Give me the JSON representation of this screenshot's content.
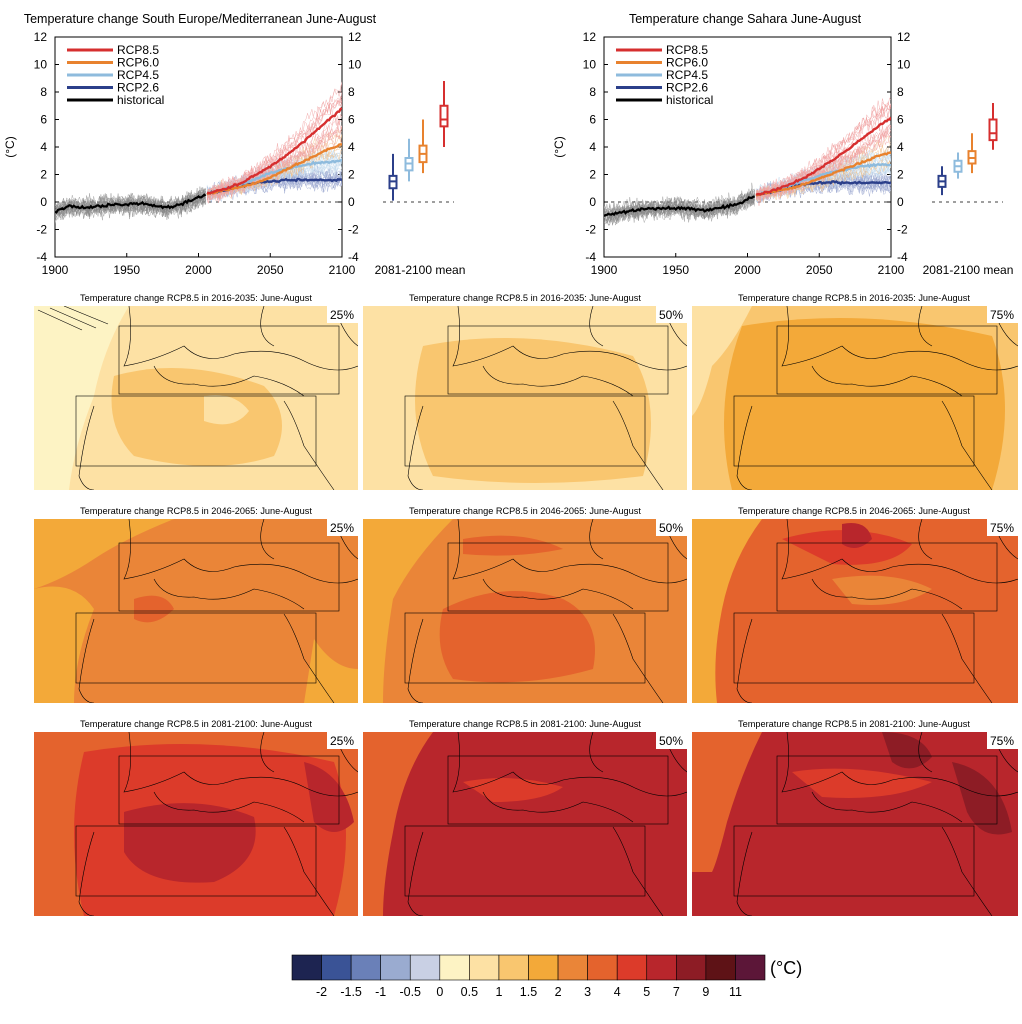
{
  "timeseries_panels": [
    {
      "title": "Temperature change South Europe/Mediterranean June-August",
      "y_unit": "(°C)",
      "boxplot_label": "2081-2100 mean"
    },
    {
      "title": "Temperature change Sahara June-August",
      "y_unit": "(°C)",
      "boxplot_label": "2081-2100 mean"
    }
  ],
  "x_ticks": [
    "1900",
    "1950",
    "2000",
    "2050",
    "2100"
  ],
  "y_ticks": [
    "12",
    "10",
    "8",
    "6",
    "4",
    "2",
    "0",
    "-2",
    "-4"
  ],
  "legend": [
    {
      "label": "RCP8.5",
      "color": "#d62f2f"
    },
    {
      "label": "RCP6.0",
      "color": "#e8822e"
    },
    {
      "label": "RCP4.5",
      "color": "#8ebbdd"
    },
    {
      "label": "RCP2.6",
      "color": "#2b3f8a"
    },
    {
      "label": "historical",
      "color": "#000000"
    }
  ],
  "chart_data": [
    {
      "type": "line",
      "title": "Temperature change South Europe/Mediterranean June-August",
      "ylabel": "(°C)",
      "xlim": [
        1900,
        2100
      ],
      "ylim": [
        -4,
        12
      ],
      "historical": {
        "x": [
          1900,
          1910,
          1920,
          1930,
          1940,
          1950,
          1960,
          1970,
          1980,
          1990,
          2000,
          2005
        ],
        "y": [
          -0.7,
          -0.3,
          -0.4,
          -0.3,
          -0.2,
          -0.2,
          -0.1,
          -0.3,
          -0.4,
          -0.1,
          0.3,
          0.5
        ]
      },
      "series": [
        {
          "name": "RCP8.5",
          "x": [
            2006,
            2020,
            2030,
            2040,
            2050,
            2060,
            2070,
            2080,
            2090,
            2100
          ],
          "y": [
            0.6,
            1.0,
            1.4,
            2.0,
            2.6,
            3.3,
            4.1,
            5.0,
            5.9,
            6.8
          ]
        },
        {
          "name": "RCP6.0",
          "x": [
            2006,
            2020,
            2030,
            2040,
            2050,
            2060,
            2070,
            2080,
            2090,
            2100
          ],
          "y": [
            0.6,
            0.9,
            1.1,
            1.4,
            1.8,
            2.3,
            2.8,
            3.3,
            3.8,
            4.2
          ]
        },
        {
          "name": "RCP4.5",
          "x": [
            2006,
            2020,
            2030,
            2040,
            2050,
            2060,
            2070,
            2080,
            2090,
            2100
          ],
          "y": [
            0.6,
            1.0,
            1.3,
            1.7,
            2.1,
            2.4,
            2.6,
            2.8,
            2.9,
            3.0
          ]
        },
        {
          "name": "RCP2.6",
          "x": [
            2006,
            2020,
            2030,
            2040,
            2050,
            2060,
            2070,
            2080,
            2090,
            2100
          ],
          "y": [
            0.6,
            0.9,
            1.2,
            1.4,
            1.5,
            1.6,
            1.6,
            1.6,
            1.6,
            1.6
          ]
        }
      ],
      "boxplots_2081_2100": [
        {
          "name": "RCP2.6",
          "min": 0.1,
          "q1": 1.0,
          "median": 1.5,
          "q3": 1.9,
          "max": 3.5
        },
        {
          "name": "RCP4.5",
          "min": 1.5,
          "q1": 2.3,
          "median": 2.8,
          "q3": 3.2,
          "max": 4.6
        },
        {
          "name": "RCP6.0",
          "min": 2.1,
          "q1": 2.9,
          "median": 3.5,
          "q3": 4.1,
          "max": 6.0
        },
        {
          "name": "RCP8.5",
          "min": 4.0,
          "q1": 5.5,
          "median": 6.0,
          "q3": 7.0,
          "max": 8.8
        }
      ]
    },
    {
      "type": "line",
      "title": "Temperature change Sahara June-August",
      "ylabel": "(°C)",
      "xlim": [
        1900,
        2100
      ],
      "ylim": [
        -4,
        12
      ],
      "historical": {
        "x": [
          1900,
          1910,
          1920,
          1930,
          1940,
          1950,
          1960,
          1970,
          1980,
          1990,
          2000,
          2005
        ],
        "y": [
          -1.0,
          -0.8,
          -0.6,
          -0.5,
          -0.5,
          -0.4,
          -0.5,
          -0.6,
          -0.4,
          -0.3,
          0.2,
          0.4
        ]
      },
      "series": [
        {
          "name": "RCP8.5",
          "x": [
            2006,
            2020,
            2030,
            2040,
            2050,
            2060,
            2070,
            2080,
            2090,
            2100
          ],
          "y": [
            0.5,
            0.9,
            1.3,
            1.8,
            2.4,
            3.1,
            3.8,
            4.6,
            5.4,
            6.1
          ]
        },
        {
          "name": "RCP6.0",
          "x": [
            2006,
            2020,
            2030,
            2040,
            2050,
            2060,
            2070,
            2080,
            2090,
            2100
          ],
          "y": [
            0.5,
            0.8,
            1.0,
            1.3,
            1.7,
            2.1,
            2.5,
            2.9,
            3.3,
            3.6
          ]
        },
        {
          "name": "RCP4.5",
          "x": [
            2006,
            2020,
            2030,
            2040,
            2050,
            2060,
            2070,
            2080,
            2090,
            2100
          ],
          "y": [
            0.5,
            0.9,
            1.2,
            1.6,
            1.9,
            2.2,
            2.4,
            2.6,
            2.7,
            2.7
          ]
        },
        {
          "name": "RCP2.6",
          "x": [
            2006,
            2020,
            2030,
            2040,
            2050,
            2060,
            2070,
            2080,
            2090,
            2100
          ],
          "y": [
            0.5,
            0.8,
            1.1,
            1.3,
            1.4,
            1.4,
            1.4,
            1.4,
            1.4,
            1.4
          ]
        }
      ],
      "boxplots_2081_2100": [
        {
          "name": "RCP2.6",
          "min": 0.5,
          "q1": 1.1,
          "median": 1.5,
          "q3": 1.9,
          "max": 2.6
        },
        {
          "name": "RCP4.5",
          "min": 1.7,
          "q1": 2.2,
          "median": 2.6,
          "q3": 3.0,
          "max": 3.6
        },
        {
          "name": "RCP6.0",
          "min": 2.1,
          "q1": 2.8,
          "median": 3.2,
          "q3": 3.7,
          "max": 5.0
        },
        {
          "name": "RCP8.5",
          "min": 3.8,
          "q1": 4.5,
          "median": 5.0,
          "q3": 6.0,
          "max": 7.2
        }
      ]
    }
  ],
  "maps": {
    "rows": [
      {
        "title": "Temperature change RCP8.5 in 2016-2035: June-August",
        "percentiles": [
          "25%",
          "50%",
          "75%"
        ]
      },
      {
        "title": "Temperature change RCP8.5 in 2046-2065: June-August",
        "percentiles": [
          "25%",
          "50%",
          "75%"
        ]
      },
      {
        "title": "Temperature change RCP8.5 in 2081-2100: June-August",
        "percentiles": [
          "25%",
          "50%",
          "75%"
        ]
      }
    ]
  },
  "colorbar": {
    "unit": "(°C)",
    "labels": [
      "-2",
      "-1.5",
      "-1",
      "-0.5",
      "0",
      "0.5",
      "1",
      "1.5",
      "2",
      "3",
      "4",
      "5",
      "7",
      "9",
      "11"
    ],
    "colors": [
      "#1d2451",
      "#3a5396",
      "#6a80b8",
      "#9aabd0",
      "#c9d0e4",
      "#fdf3c4",
      "#fde1a4",
      "#f9c66f",
      "#f3a939",
      "#ea8538",
      "#e4632d",
      "#dc3b2a",
      "#b8262c",
      "#8d1c25",
      "#5e1216",
      "#5c1638"
    ]
  }
}
